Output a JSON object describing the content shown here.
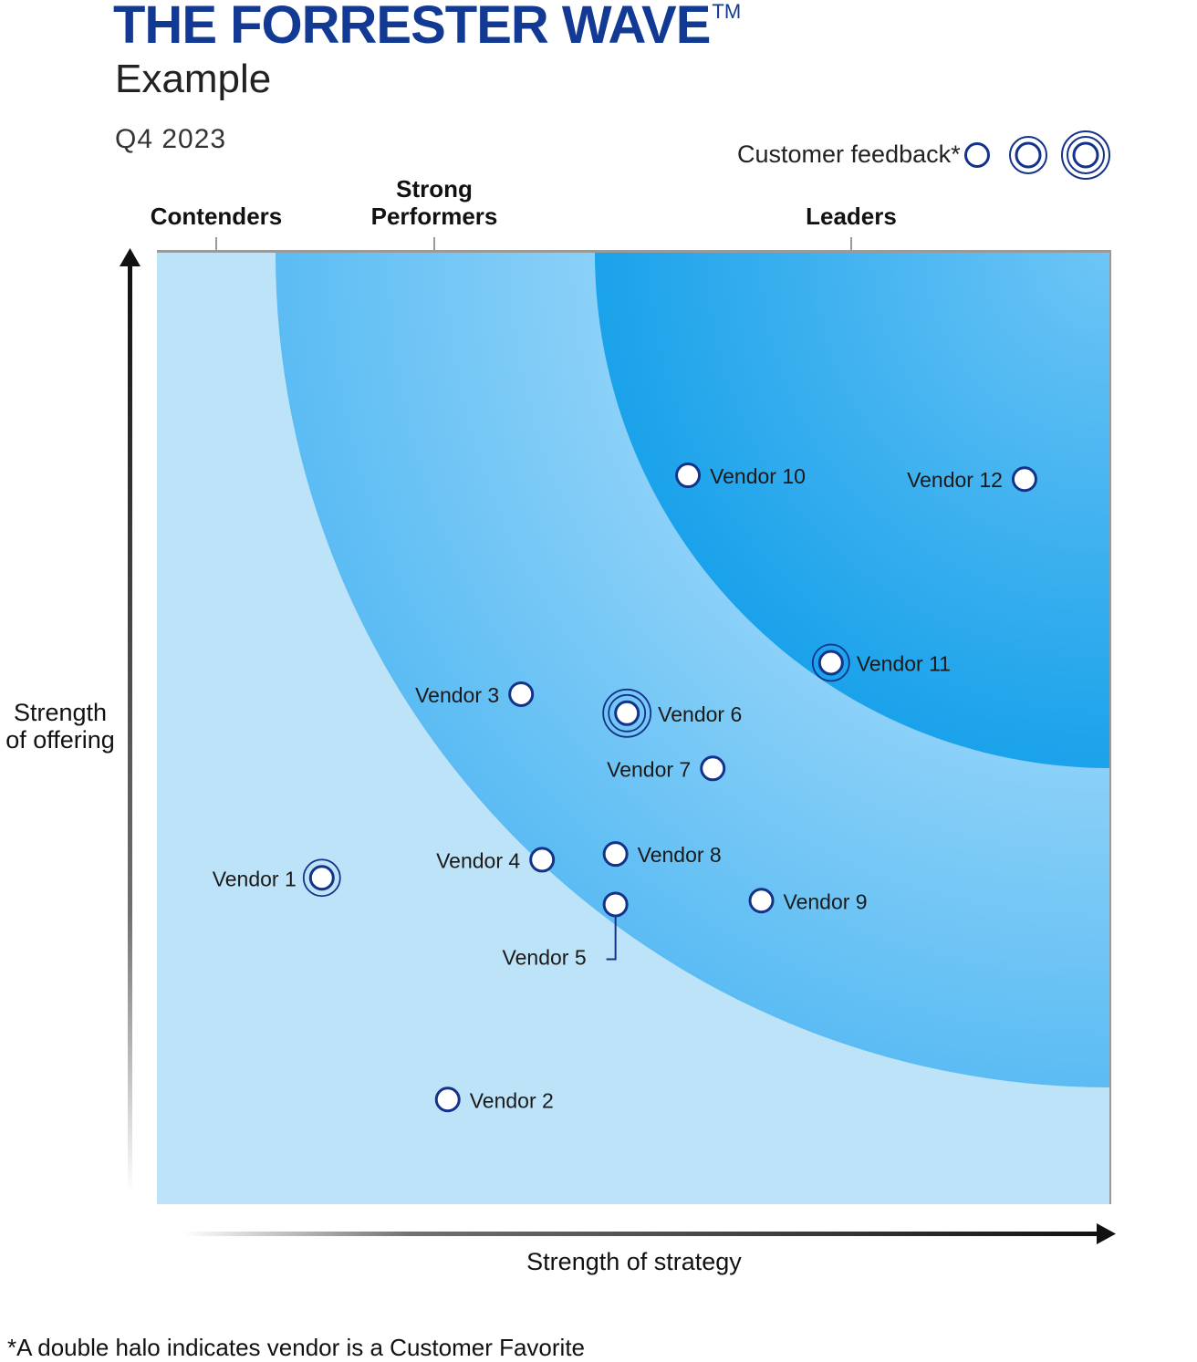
{
  "header": {
    "title": "THE FORRESTER WAVE",
    "trademark": "TM",
    "subtitle": "Example",
    "quarter": "Q4 2023"
  },
  "legend": {
    "label": "Customer feedback*",
    "levels": [
      "single halo",
      "single halo emphasized",
      "double halo"
    ]
  },
  "footnote": "*A double halo indicates vendor is a Customer Favorite",
  "colors": {
    "title": "#123a94",
    "marker": "#13328a",
    "outer_zone": "#bde3f8",
    "middle_zone": "#5bbcf3",
    "inner_zone": "#1aa2ea"
  },
  "chart_data": {
    "type": "scatter",
    "title": "THE FORRESTER WAVE",
    "xlabel": "Strength of strategy",
    "ylabel": "Strength of offering",
    "xlim": [
      0,
      100
    ],
    "ylim": [
      0,
      100
    ],
    "categories": [
      {
        "label": "Contenders",
        "tick": 6.2
      },
      {
        "label": "Strong Performers",
        "tick": 29.1
      },
      {
        "label": "Leaders",
        "tick": 72.8
      }
    ],
    "points": [
      {
        "name": "Vendor 1",
        "x": 17.3,
        "y": 34.3,
        "feedback": 2,
        "label_side": "left"
      },
      {
        "name": "Vendor 2",
        "x": 30.5,
        "y": 11.0,
        "feedback": 1,
        "label_side": "right"
      },
      {
        "name": "Vendor 3",
        "x": 38.2,
        "y": 53.6,
        "feedback": 1,
        "label_side": "left"
      },
      {
        "name": "Vendor 4",
        "x": 40.4,
        "y": 36.2,
        "feedback": 1,
        "label_side": "left"
      },
      {
        "name": "Vendor 5",
        "x": 48.1,
        "y": 31.5,
        "feedback": 1,
        "label_side": "below-left"
      },
      {
        "name": "Vendor 6",
        "x": 49.3,
        "y": 51.6,
        "feedback": 3,
        "label_side": "right"
      },
      {
        "name": "Vendor 7",
        "x": 58.3,
        "y": 45.8,
        "feedback": 1,
        "label_side": "left"
      },
      {
        "name": "Vendor 8",
        "x": 48.1,
        "y": 36.8,
        "feedback": 1,
        "label_side": "right"
      },
      {
        "name": "Vendor 9",
        "x": 63.4,
        "y": 31.9,
        "feedback": 1,
        "label_side": "right"
      },
      {
        "name": "Vendor 10",
        "x": 55.7,
        "y": 76.6,
        "feedback": 1,
        "label_side": "right"
      },
      {
        "name": "Vendor 11",
        "x": 70.7,
        "y": 56.9,
        "feedback": 2,
        "label_side": "right"
      },
      {
        "name": "Vendor 12",
        "x": 91.0,
        "y": 76.2,
        "feedback": 1,
        "label_side": "left"
      }
    ]
  }
}
